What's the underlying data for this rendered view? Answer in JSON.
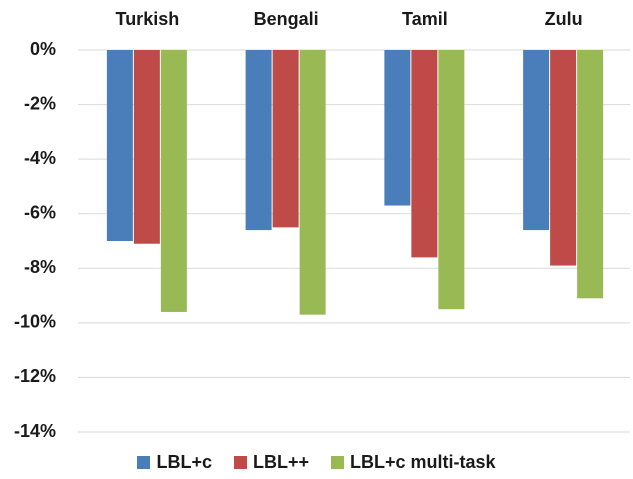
{
  "chart_data": {
    "type": "bar",
    "categories": [
      "Turkish",
      "Bengali",
      "Tamil",
      "Zulu"
    ],
    "series": [
      {
        "name": "LBL+c",
        "color": "#4a7ebb",
        "values": [
          -7.0,
          -6.6,
          -5.7,
          -6.6
        ]
      },
      {
        "name": "LBL++",
        "color": "#be4b48",
        "values": [
          -7.1,
          -6.5,
          -7.6,
          -7.9
        ]
      },
      {
        "name": "LBL+c multi-task",
        "color": "#98b954",
        "values": [
          -9.6,
          -9.7,
          -9.5,
          -9.1
        ]
      }
    ],
    "ylim": [
      -14,
      0
    ],
    "yticks": [
      {
        "value": 0,
        "label": "0%"
      },
      {
        "value": -2,
        "label": "-2%"
      },
      {
        "value": -4,
        "label": "-4%"
      },
      {
        "value": -6,
        "label": "-6%"
      },
      {
        "value": -8,
        "label": "-8%"
      },
      {
        "value": -10,
        "label": "-10%"
      },
      {
        "value": -12,
        "label": "-12%"
      },
      {
        "value": -14,
        "label": "-14%"
      }
    ],
    "grid": true,
    "legend": "bottom"
  }
}
